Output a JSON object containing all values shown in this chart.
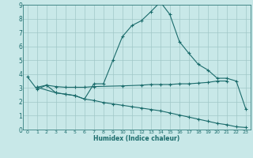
{
  "xlabel": "Humidex (Indice chaleur)",
  "xlim": [
    -0.5,
    23.5
  ],
  "ylim": [
    0,
    9
  ],
  "xticks": [
    0,
    1,
    2,
    3,
    4,
    5,
    6,
    7,
    8,
    9,
    10,
    11,
    12,
    13,
    14,
    15,
    16,
    17,
    18,
    19,
    20,
    21,
    22,
    23
  ],
  "yticks": [
    0,
    1,
    2,
    3,
    4,
    5,
    6,
    7,
    8,
    9
  ],
  "bg_color": "#c8e8e8",
  "line_color": "#1a6b6b",
  "grid_color": "#a0c8c8",
  "line1_x": [
    0,
    1,
    2,
    3,
    4,
    5,
    6,
    7,
    8,
    9,
    10,
    11,
    12,
    13,
    14,
    15,
    16,
    17,
    18,
    19,
    20,
    21,
    22,
    23
  ],
  "line1_y": [
    3.8,
    2.9,
    3.2,
    2.65,
    2.55,
    2.45,
    2.2,
    3.3,
    3.3,
    5.0,
    6.7,
    7.5,
    7.85,
    8.5,
    9.2,
    8.3,
    6.35,
    5.5,
    4.7,
    4.3,
    3.7,
    3.7,
    3.5,
    1.5
  ],
  "line2_x": [
    1,
    2,
    3,
    4,
    5,
    6,
    7,
    10,
    12,
    13,
    14,
    15,
    16,
    17,
    18,
    19,
    20,
    21
  ],
  "line2_y": [
    3.05,
    3.2,
    3.1,
    3.05,
    3.05,
    3.05,
    3.1,
    3.15,
    3.2,
    3.25,
    3.25,
    3.25,
    3.3,
    3.3,
    3.35,
    3.4,
    3.5,
    3.5
  ],
  "line3_x": [
    1,
    3,
    4,
    5,
    6,
    7,
    8,
    9,
    10,
    11,
    12,
    13,
    14,
    15,
    16,
    17,
    18,
    19,
    20,
    21,
    22,
    23
  ],
  "line3_y": [
    3.05,
    2.65,
    2.55,
    2.45,
    2.2,
    2.1,
    1.95,
    1.85,
    1.75,
    1.65,
    1.55,
    1.45,
    1.35,
    1.2,
    1.05,
    0.9,
    0.75,
    0.6,
    0.45,
    0.35,
    0.2,
    0.15
  ]
}
